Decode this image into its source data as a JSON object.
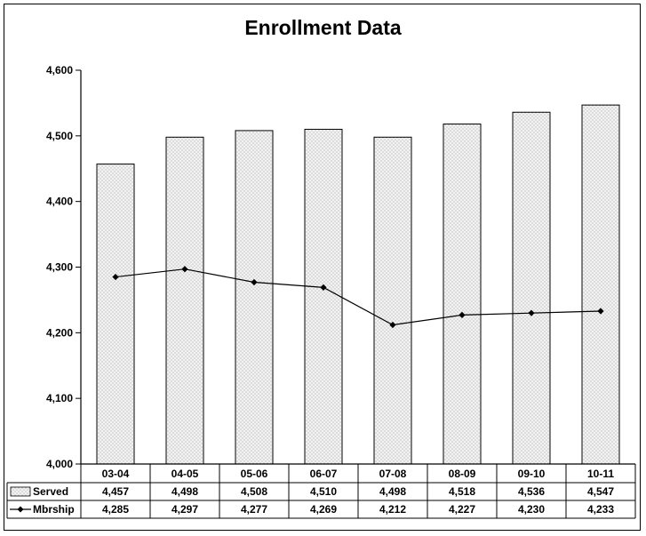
{
  "chart_data": {
    "type": "bar",
    "title": "Enrollment Data",
    "categories": [
      "03-04",
      "04-05",
      "05-06",
      "06-07",
      "07-08",
      "08-09",
      "09-10",
      "10-11"
    ],
    "series": [
      {
        "name": "Served",
        "kind": "bar",
        "pattern": "dotted",
        "values": [
          4457,
          4498,
          4508,
          4510,
          4498,
          4518,
          4536,
          4547
        ]
      },
      {
        "name": "Mbrship",
        "kind": "line",
        "marker": "diamond",
        "values": [
          4285,
          4297,
          4277,
          4269,
          4212,
          4227,
          4230,
          4233
        ]
      }
    ],
    "ylim": [
      4000,
      4600
    ],
    "yticks": [
      "4,000",
      "4,100",
      "4,200",
      "4,300",
      "4,400",
      "4,500",
      "4,600"
    ],
    "data_table": {
      "rows": [
        {
          "label": "Served",
          "cells": [
            "4,457",
            "4,498",
            "4,508",
            "4,510",
            "4,498",
            "4,518",
            "4,536",
            "4,547"
          ]
        },
        {
          "label": "Mbrship",
          "cells": [
            "4,285",
            "4,297",
            "4,277",
            "4,269",
            "4,212",
            "4,227",
            "4,230",
            "4,233"
          ]
        }
      ]
    },
    "grid": false,
    "colors": {
      "bar_fill": "#f2f2f2",
      "bar_dots": "#8a8a8a",
      "line": "#000000"
    }
  }
}
